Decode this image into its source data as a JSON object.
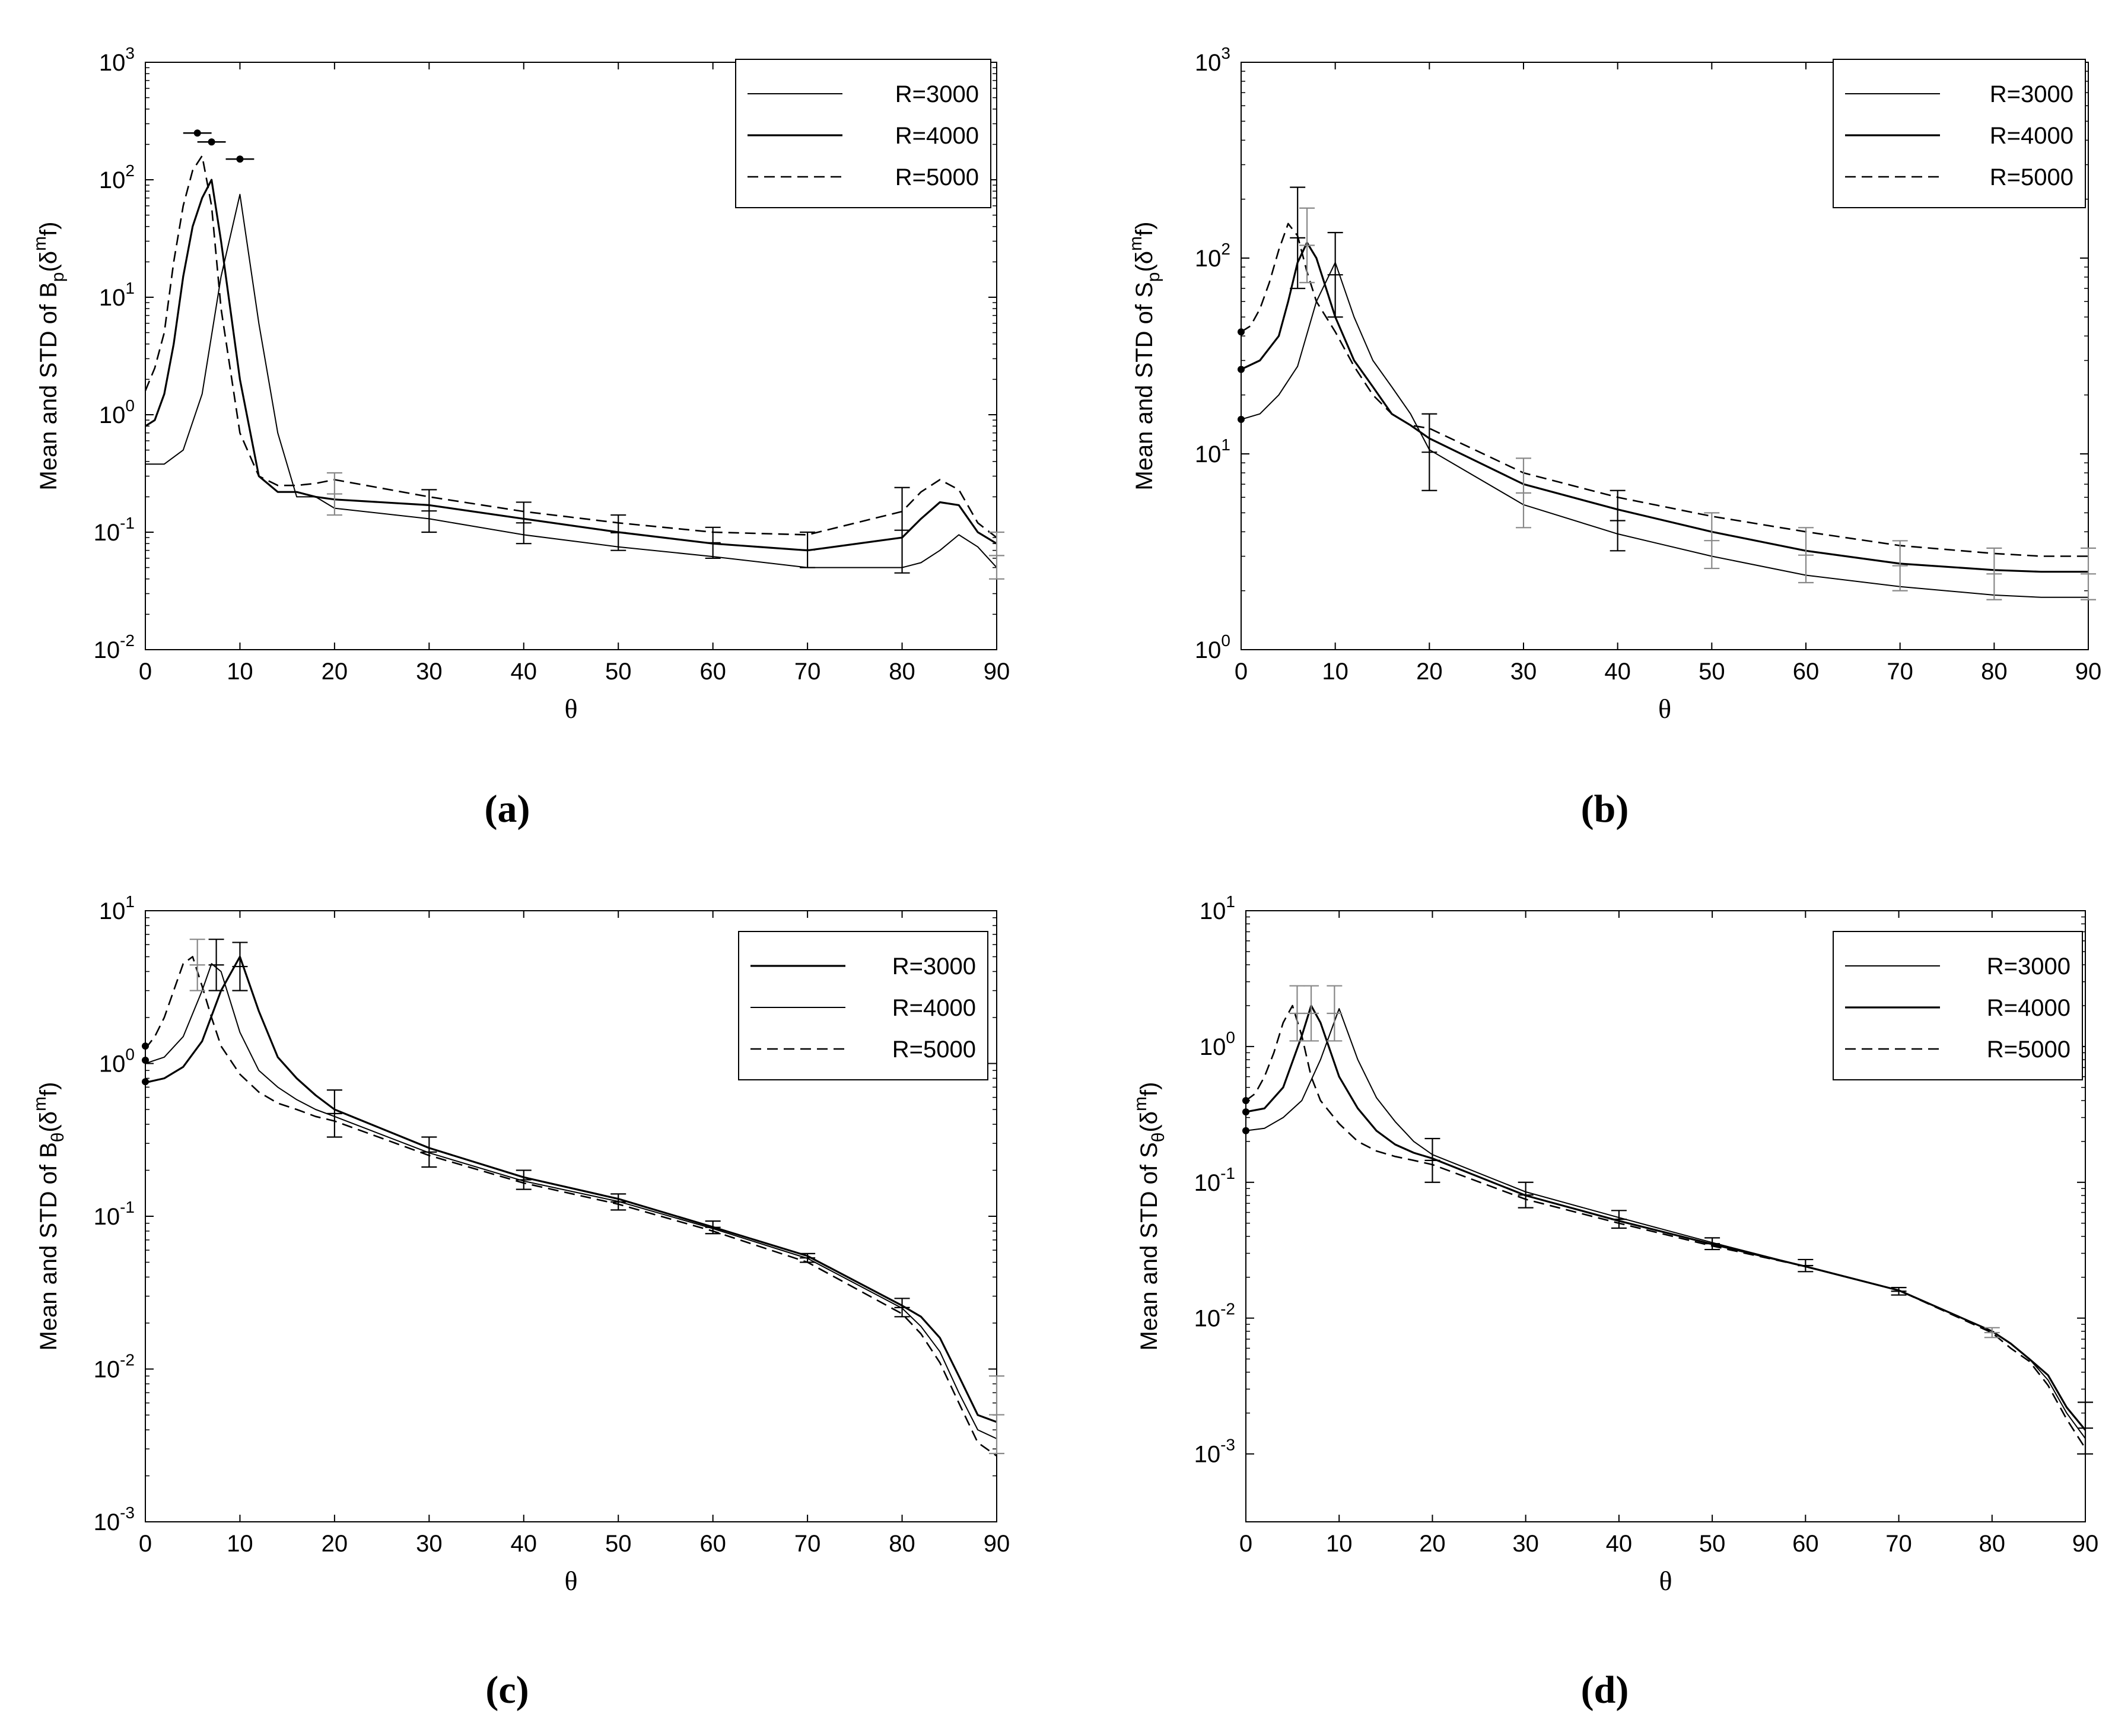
{
  "colors": {
    "axis": "#000000",
    "dark": "#000000",
    "light": "#888888",
    "background": "#ffffff"
  },
  "chart_data": [
    {
      "id": "a",
      "type": "line",
      "caption": "(a)",
      "xlabel": "θ",
      "ylabel_pre": "Mean and STD of B",
      "ylabel_sub": "p",
      "ylabel_post": "(δ",
      "ylabel_sup": "m",
      "ylabel_end": "f)",
      "xlim": [
        0,
        90
      ],
      "ylim_exp": [
        -2,
        3
      ],
      "x_ticks": [
        "0",
        "10",
        "20",
        "30",
        "40",
        "50",
        "60",
        "70",
        "80",
        "90"
      ],
      "y_tick_exponents": [
        "-2",
        "-1",
        "0",
        "1",
        "2",
        "3"
      ],
      "y_tick_base": "10",
      "legend_position": "top-right",
      "series": [
        {
          "name": "R=3000",
          "style": "thin",
          "x": [
            0,
            2,
            4,
            6,
            8,
            10,
            12,
            14,
            16,
            18,
            20,
            30,
            40,
            50,
            60,
            70,
            80,
            82,
            84,
            86,
            88,
            90
          ],
          "y": [
            0.38,
            0.38,
            0.5,
            1.5,
            15,
            75,
            6,
            0.7,
            0.2,
            0.2,
            0.16,
            0.13,
            0.095,
            0.075,
            0.062,
            0.05,
            0.05,
            0.055,
            0.07,
            0.095,
            0.075,
            0.05
          ]
        },
        {
          "name": "R=4000",
          "style": "thick",
          "x": [
            0,
            1,
            2,
            3,
            4,
            5,
            6,
            7,
            8,
            10,
            12,
            14,
            16,
            18,
            20,
            30,
            40,
            50,
            60,
            70,
            80,
            82,
            84,
            86,
            88,
            90
          ],
          "y": [
            0.8,
            0.9,
            1.5,
            4,
            15,
            40,
            70,
            100,
            30,
            2,
            0.3,
            0.22,
            0.22,
            0.2,
            0.19,
            0.17,
            0.13,
            0.1,
            0.08,
            0.07,
            0.09,
            0.13,
            0.18,
            0.17,
            0.1,
            0.08
          ]
        },
        {
          "name": "R=5000",
          "style": "dashed",
          "x": [
            0,
            1,
            2,
            3,
            4,
            5,
            6,
            7,
            8,
            10,
            12,
            14,
            16,
            18,
            20,
            30,
            40,
            50,
            60,
            70,
            80,
            82,
            84,
            86,
            88,
            90
          ],
          "y": [
            1.6,
            2.5,
            5,
            20,
            60,
            120,
            160,
            60,
            8,
            0.7,
            0.3,
            0.25,
            0.25,
            0.26,
            0.28,
            0.2,
            0.15,
            0.12,
            0.1,
            0.095,
            0.15,
            0.22,
            0.28,
            0.23,
            0.12,
            0.09
          ]
        }
      ],
      "errorbars": [
        {
          "x": 20,
          "lo": 0.14,
          "hi": 0.32,
          "shade": "light"
        },
        {
          "x": 30,
          "lo": 0.1,
          "hi": 0.23,
          "shade": "dark"
        },
        {
          "x": 40,
          "lo": 0.08,
          "hi": 0.18,
          "shade": "dark"
        },
        {
          "x": 50,
          "lo": 0.07,
          "hi": 0.14,
          "shade": "dark"
        },
        {
          "x": 60,
          "lo": 0.06,
          "hi": 0.11,
          "shade": "dark"
        },
        {
          "x": 70,
          "lo": 0.05,
          "hi": 0.1,
          "shade": "dark"
        },
        {
          "x": 80,
          "lo": 0.045,
          "hi": 0.24,
          "shade": "dark"
        },
        {
          "x": 90,
          "lo": 0.04,
          "hi": 0.1,
          "shade": "light"
        }
      ],
      "points": [
        {
          "x": 5.5,
          "y": 250,
          "bar": 1.5
        },
        {
          "x": 7,
          "y": 210,
          "bar": 1.5
        },
        {
          "x": 10,
          "y": 150,
          "bar": 1.5
        }
      ]
    },
    {
      "id": "b",
      "type": "line",
      "caption": "(b)",
      "xlabel": "θ",
      "ylabel_pre": "Mean and STD of S",
      "ylabel_sub": "p",
      "ylabel_post": "(δ",
      "ylabel_sup": "m",
      "ylabel_end": "f)",
      "xlim": [
        0,
        90
      ],
      "ylim_exp": [
        0,
        3
      ],
      "x_ticks": [
        "0",
        "10",
        "20",
        "30",
        "40",
        "50",
        "60",
        "70",
        "80",
        "90"
      ],
      "y_tick_exponents": [
        "0",
        "1",
        "2",
        "3"
      ],
      "y_tick_base": "10",
      "legend_position": "top-right",
      "series": [
        {
          "name": "R=3000",
          "style": "thin",
          "x": [
            0,
            2,
            4,
            6,
            8,
            10,
            12,
            14,
            16,
            18,
            20,
            30,
            40,
            50,
            60,
            70,
            80,
            85,
            90
          ],
          "y": [
            15,
            16,
            20,
            28,
            60,
            95,
            50,
            30,
            22,
            16,
            10.5,
            5.5,
            3.9,
            3,
            2.4,
            2.1,
            1.9,
            1.85,
            1.85
          ]
        },
        {
          "name": "R=4000",
          "style": "thick",
          "x": [
            0,
            2,
            4,
            5,
            6,
            7,
            8,
            10,
            12,
            14,
            16,
            18,
            20,
            30,
            40,
            50,
            60,
            70,
            80,
            85,
            90
          ],
          "y": [
            27,
            30,
            40,
            60,
            95,
            120,
            100,
            50,
            30,
            22,
            16,
            14,
            12,
            7,
            5.2,
            4,
            3.2,
            2.75,
            2.55,
            2.5,
            2.5
          ]
        },
        {
          "name": "R=5000",
          "style": "dashed",
          "x": [
            0,
            1,
            2,
            3,
            4,
            5,
            6,
            7,
            8,
            10,
            12,
            14,
            16,
            18,
            20,
            30,
            40,
            50,
            60,
            70,
            80,
            85,
            90
          ],
          "y": [
            42,
            45,
            55,
            75,
            110,
            150,
            130,
            85,
            60,
            42,
            28,
            20,
            16,
            14,
            13.5,
            8,
            6,
            4.8,
            4,
            3.4,
            3.1,
            3,
            3
          ]
        }
      ],
      "errorbars": [
        {
          "x": 6,
          "lo": 70,
          "hi": 230,
          "shade": "dark"
        },
        {
          "x": 7,
          "lo": 75,
          "hi": 180,
          "shade": "light"
        },
        {
          "x": 10,
          "lo": 50,
          "hi": 135,
          "shade": "dark"
        },
        {
          "x": 20,
          "lo": 6.5,
          "hi": 16,
          "shade": "dark"
        },
        {
          "x": 30,
          "lo": 4.2,
          "hi": 9.5,
          "shade": "light"
        },
        {
          "x": 40,
          "lo": 3.2,
          "hi": 6.5,
          "shade": "dark"
        },
        {
          "x": 50,
          "lo": 2.6,
          "hi": 5.0,
          "shade": "light"
        },
        {
          "x": 60,
          "lo": 2.2,
          "hi": 4.2,
          "shade": "light"
        },
        {
          "x": 70,
          "lo": 2.0,
          "hi": 3.6,
          "shade": "light"
        },
        {
          "x": 80,
          "lo": 1.8,
          "hi": 3.3,
          "shade": "light"
        },
        {
          "x": 90,
          "lo": 1.8,
          "hi": 3.3,
          "shade": "light"
        }
      ],
      "points": [
        {
          "x": 0,
          "y": 42,
          "bar": 0
        },
        {
          "x": 0,
          "y": 27,
          "bar": 0
        },
        {
          "x": 0,
          "y": 15,
          "bar": 0
        }
      ]
    },
    {
      "id": "c",
      "type": "line",
      "caption": "(c)",
      "xlabel": "θ",
      "ylabel_pre": "Mean and STD of B",
      "ylabel_sub": "θ",
      "ylabel_post": "(δ",
      "ylabel_sup": "m",
      "ylabel_end": "f)",
      "xlim": [
        0,
        90
      ],
      "ylim_exp": [
        -3,
        1
      ],
      "x_ticks": [
        "0",
        "10",
        "20",
        "30",
        "40",
        "50",
        "60",
        "70",
        "80",
        "90"
      ],
      "y_tick_exponents": [
        "-3",
        "-2",
        "-1",
        "0",
        "1"
      ],
      "y_tick_base": "10",
      "legend_position": "top-right",
      "series": [
        {
          "name": "R=3000",
          "style": "thick",
          "x": [
            0,
            2,
            4,
            6,
            8,
            10,
            12,
            14,
            16,
            18,
            20,
            30,
            40,
            50,
            60,
            70,
            80,
            82,
            84,
            86,
            88,
            90
          ],
          "y": [
            0.75,
            0.8,
            0.95,
            1.4,
            3,
            5,
            2.2,
            1.1,
            0.8,
            0.62,
            0.5,
            0.28,
            0.18,
            0.13,
            0.085,
            0.055,
            0.026,
            0.022,
            0.016,
            0.009,
            0.005,
            0.0045
          ]
        },
        {
          "name": "R=4000",
          "style": "thin",
          "x": [
            0,
            2,
            4,
            6,
            7,
            8,
            10,
            12,
            14,
            16,
            18,
            20,
            30,
            40,
            50,
            60,
            70,
            80,
            82,
            84,
            86,
            88,
            90
          ],
          "y": [
            1.0,
            1.1,
            1.5,
            3,
            4.5,
            4,
            1.6,
            0.9,
            0.7,
            0.58,
            0.5,
            0.45,
            0.26,
            0.17,
            0.125,
            0.083,
            0.053,
            0.025,
            0.019,
            0.013,
            0.007,
            0.004,
            0.0035
          ]
        },
        {
          "name": "R=5000",
          "style": "dashed",
          "x": [
            0,
            1,
            2,
            3,
            4,
            5,
            6,
            7,
            8,
            10,
            12,
            14,
            16,
            18,
            20,
            30,
            40,
            50,
            60,
            70,
            80,
            82,
            84,
            86,
            88,
            90
          ],
          "y": [
            1.25,
            1.5,
            2,
            3,
            4.5,
            5,
            3.2,
            2,
            1.3,
            0.85,
            0.65,
            0.55,
            0.5,
            0.45,
            0.42,
            0.25,
            0.165,
            0.12,
            0.08,
            0.05,
            0.023,
            0.017,
            0.011,
            0.006,
            0.0033,
            0.0027
          ]
        }
      ],
      "errorbars": [
        {
          "x": 5.5,
          "lo": 3,
          "hi": 6.5,
          "shade": "light"
        },
        {
          "x": 7.5,
          "lo": 3,
          "hi": 6.5,
          "shade": "dark"
        },
        {
          "x": 10,
          "lo": 3,
          "hi": 6.2,
          "shade": "dark"
        },
        {
          "x": 20,
          "lo": 0.33,
          "hi": 0.67,
          "shade": "dark"
        },
        {
          "x": 30,
          "lo": 0.21,
          "hi": 0.33,
          "shade": "dark"
        },
        {
          "x": 40,
          "lo": 0.15,
          "hi": 0.2,
          "shade": "dark"
        },
        {
          "x": 50,
          "lo": 0.11,
          "hi": 0.14,
          "shade": "dark"
        },
        {
          "x": 60,
          "lo": 0.077,
          "hi": 0.093,
          "shade": "dark"
        },
        {
          "x": 70,
          "lo": 0.05,
          "hi": 0.057,
          "shade": "dark"
        },
        {
          "x": 80,
          "lo": 0.022,
          "hi": 0.029,
          "shade": "dark"
        },
        {
          "x": 90,
          "lo": 0.0028,
          "hi": 0.009,
          "shade": "light"
        }
      ],
      "points": [
        {
          "x": 0,
          "y": 1.3,
          "bar": 0
        },
        {
          "x": 0,
          "y": 1.05,
          "bar": 0
        },
        {
          "x": 0,
          "y": 0.76,
          "bar": 0
        }
      ]
    },
    {
      "id": "d",
      "type": "line",
      "caption": "(d)",
      "xlabel": "θ",
      "ylabel_pre": "Mean and STD of S",
      "ylabel_sub": "θ",
      "ylabel_post": "(δ",
      "ylabel_sup": "m",
      "ylabel_end": "f)",
      "xlim": [
        0,
        90
      ],
      "ylim_exp": [
        -3.5,
        1
      ],
      "x_ticks": [
        "0",
        "10",
        "20",
        "30",
        "40",
        "50",
        "60",
        "70",
        "80",
        "90"
      ],
      "y_tick_exponents": [
        "-3",
        "-2",
        "-1",
        "0",
        "1"
      ],
      "y_tick_base": "10",
      "legend_position": "top-right",
      "series": [
        {
          "name": "R=3000",
          "style": "thin",
          "x": [
            0,
            2,
            4,
            6,
            8,
            10,
            12,
            14,
            16,
            18,
            20,
            30,
            40,
            50,
            60,
            70,
            80,
            82,
            84,
            86,
            88,
            90
          ],
          "y": [
            0.24,
            0.25,
            0.3,
            0.4,
            0.8,
            1.9,
            0.8,
            0.42,
            0.28,
            0.2,
            0.16,
            0.085,
            0.055,
            0.036,
            0.024,
            0.016,
            0.008,
            0.0065,
            0.005,
            0.0035,
            0.002,
            0.0013
          ]
        },
        {
          "name": "R=4000",
          "style": "thick",
          "x": [
            0,
            2,
            4,
            6,
            7,
            8,
            10,
            12,
            14,
            16,
            18,
            20,
            30,
            40,
            50,
            60,
            70,
            80,
            82,
            84,
            86,
            88,
            90
          ],
          "y": [
            0.33,
            0.35,
            0.5,
            1.2,
            2,
            1.5,
            0.6,
            0.35,
            0.24,
            0.19,
            0.165,
            0.15,
            0.08,
            0.052,
            0.035,
            0.024,
            0.016,
            0.008,
            0.0065,
            0.005,
            0.0038,
            0.0022,
            0.0015
          ]
        },
        {
          "name": "R=5000",
          "style": "dashed",
          "x": [
            0,
            1,
            2,
            3,
            4,
            5,
            6,
            7,
            8,
            10,
            12,
            14,
            16,
            18,
            20,
            30,
            40,
            50,
            60,
            70,
            80,
            82,
            84,
            86,
            88,
            90
          ],
          "y": [
            0.4,
            0.45,
            0.6,
            0.9,
            1.5,
            2,
            1.2,
            0.6,
            0.4,
            0.27,
            0.2,
            0.17,
            0.155,
            0.145,
            0.135,
            0.075,
            0.05,
            0.034,
            0.024,
            0.016,
            0.0078,
            0.006,
            0.0048,
            0.0032,
            0.0018,
            0.0011
          ]
        }
      ],
      "errorbars": [
        {
          "x": 5.5,
          "lo": 1.1,
          "hi": 2.8,
          "shade": "light"
        },
        {
          "x": 7,
          "lo": 1.1,
          "hi": 2.8,
          "shade": "light"
        },
        {
          "x": 9.5,
          "lo": 1.1,
          "hi": 2.8,
          "shade": "light"
        },
        {
          "x": 20,
          "lo": 0.1,
          "hi": 0.21,
          "shade": "dark"
        },
        {
          "x": 30,
          "lo": 0.065,
          "hi": 0.1,
          "shade": "dark"
        },
        {
          "x": 40,
          "lo": 0.046,
          "hi": 0.062,
          "shade": "dark"
        },
        {
          "x": 50,
          "lo": 0.032,
          "hi": 0.039,
          "shade": "dark"
        },
        {
          "x": 60,
          "lo": 0.022,
          "hi": 0.027,
          "shade": "dark"
        },
        {
          "x": 70,
          "lo": 0.0148,
          "hi": 0.0168,
          "shade": "dark"
        },
        {
          "x": 80,
          "lo": 0.0072,
          "hi": 0.0085,
          "shade": "light"
        },
        {
          "x": 90,
          "lo": 0.001,
          "hi": 0.0024,
          "shade": "dark"
        }
      ],
      "points": [
        {
          "x": 0,
          "y": 0.4,
          "bar": 0
        },
        {
          "x": 0,
          "y": 0.33,
          "bar": 0
        },
        {
          "x": 0,
          "y": 0.24,
          "bar": 0
        }
      ]
    }
  ]
}
